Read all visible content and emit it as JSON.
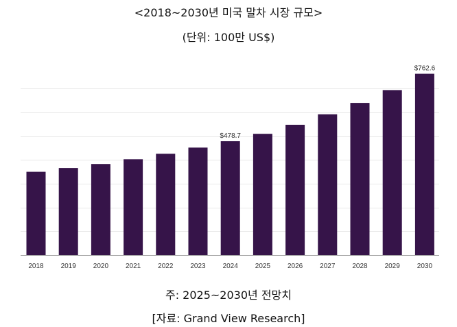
{
  "chart_data": {
    "type": "bar",
    "title": "<2018~2030년 미국 말차 시장 규모>",
    "subtitle": "(단위: 100만 US$)",
    "categories": [
      "2018",
      "2019",
      "2020",
      "2021",
      "2022",
      "2023",
      "2024",
      "2025",
      "2026",
      "2027",
      "2028",
      "2029",
      "2030"
    ],
    "values": [
      350,
      366,
      383,
      403,
      426,
      452,
      478.7,
      510,
      548,
      592,
      640,
      694,
      762.6
    ],
    "data_labels": [
      {
        "category": "2024",
        "text": "$478.7"
      },
      {
        "category": "2030",
        "text": "$762.6"
      }
    ],
    "ylim": [
      0,
      770
    ],
    "grid": true,
    "bar_color": "#361449",
    "grid_color": "#e8e8e8",
    "axis_color": "#999999"
  },
  "footer": {
    "note": "주: 2025~2030년 전망치",
    "source": "[자료: Grand View Research]"
  }
}
